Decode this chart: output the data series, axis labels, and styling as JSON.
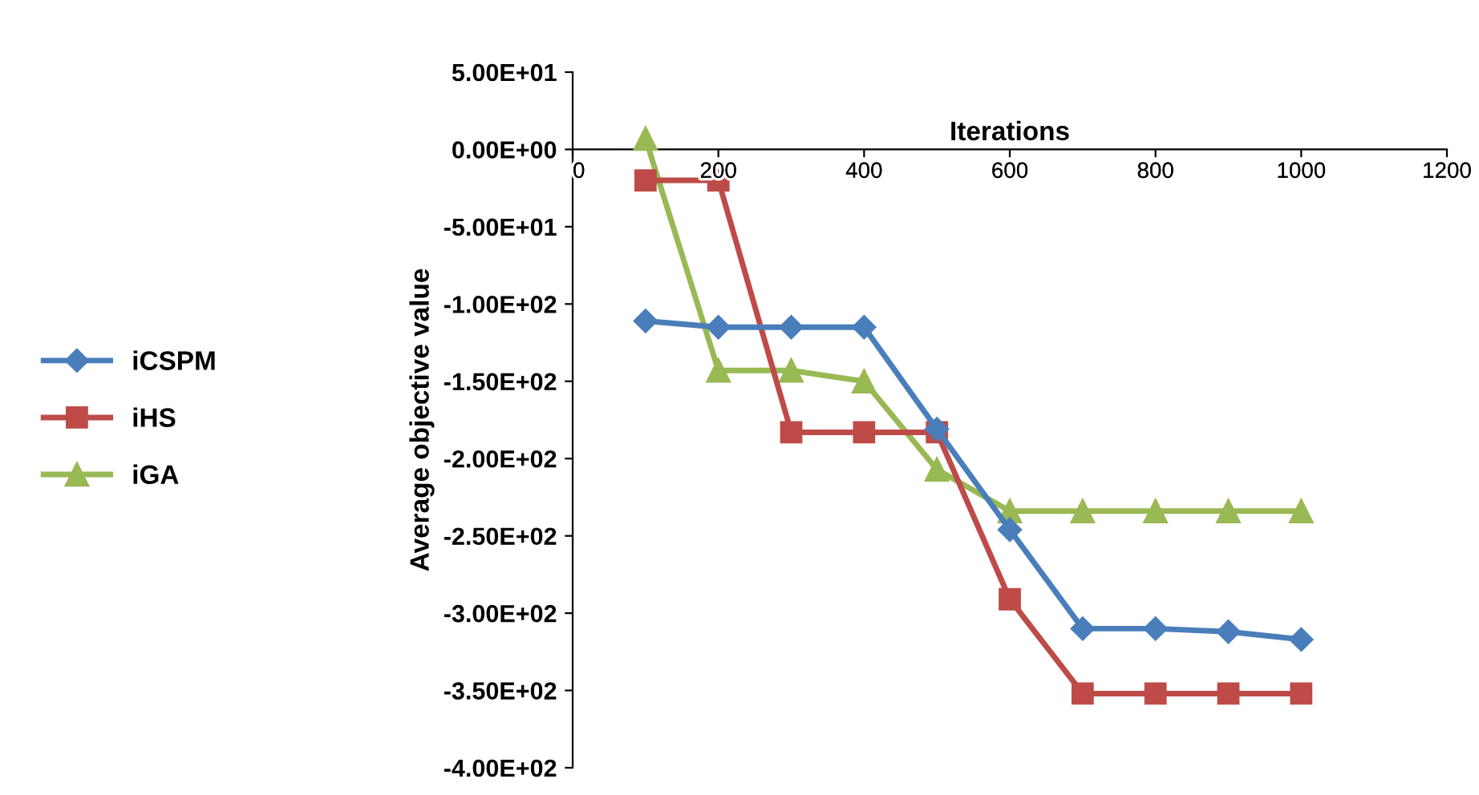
{
  "chart_data": {
    "type": "line",
    "xlabel": "Iterations",
    "ylabel": "Average objective value",
    "x": [
      100,
      200,
      300,
      400,
      500,
      600,
      700,
      800,
      900,
      1000
    ],
    "series": [
      {
        "name": "iCSPM",
        "color": "#4a7ebb",
        "marker": "diamond",
        "values": [
          -111,
          -115,
          -115,
          -115,
          -181,
          -246,
          -310,
          -310,
          -312,
          -317
        ]
      },
      {
        "name": "iHS",
        "color": "#be4b48",
        "marker": "square",
        "values": [
          -20,
          -20,
          -183,
          -183,
          -183,
          -291,
          -352,
          -352,
          -352,
          -352
        ]
      },
      {
        "name": "iGA",
        "color": "#98b954",
        "marker": "triangle",
        "values": [
          7,
          -143,
          -143,
          -150,
          -207,
          -234,
          -234,
          -234,
          -234,
          -234
        ]
      }
    ],
    "xlim": [
      0,
      1200
    ],
    "xticks": [
      0,
      200,
      400,
      600,
      800,
      1000,
      1200
    ],
    "ylim": [
      -400,
      50
    ],
    "yticks": [
      {
        "value": 50,
        "label": "5.00E+01"
      },
      {
        "value": 0,
        "label": "0.00E+00"
      },
      {
        "value": -50,
        "label": "-5.00E+01"
      },
      {
        "value": -100,
        "label": "-1.00E+02"
      },
      {
        "value": -150,
        "label": "-1.50E+02"
      },
      {
        "value": -200,
        "label": "-2.00E+02"
      },
      {
        "value": -250,
        "label": "-2.50E+02"
      },
      {
        "value": -300,
        "label": "-3.00E+02"
      },
      {
        "value": -350,
        "label": "-3.50E+02"
      },
      {
        "value": -400,
        "label": "-4.00E+02"
      }
    ],
    "grid": false,
    "legend": "left",
    "line_style": "solid"
  }
}
